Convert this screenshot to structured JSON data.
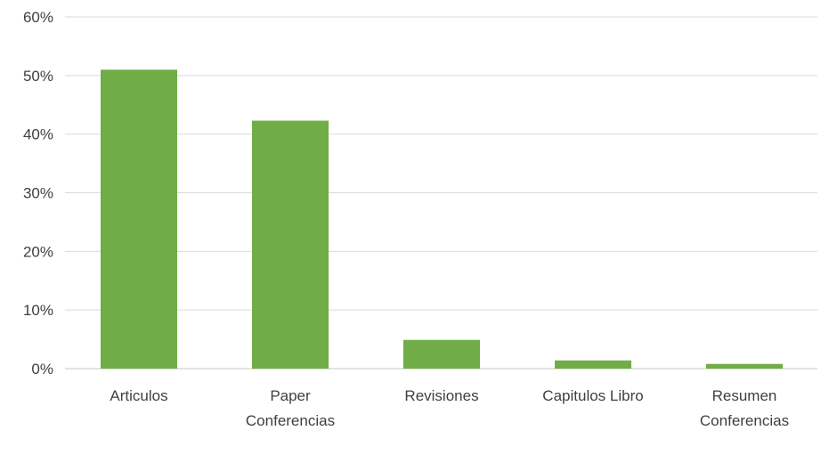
{
  "chart_data": {
    "type": "bar",
    "title": "",
    "xlabel": "",
    "ylabel": "",
    "categories": [
      [
        "Articulos"
      ],
      [
        "Paper",
        "Conferencias"
      ],
      [
        "Revisiones"
      ],
      [
        "Capitulos Libro"
      ],
      [
        "Resumen",
        "Conferencias"
      ]
    ],
    "values": [
      51,
      42.3,
      4.9,
      1.4,
      0.8
    ],
    "ylim": [
      0,
      60
    ],
    "yticks": [
      0,
      10,
      20,
      30,
      40,
      50,
      60
    ],
    "ytick_labels": [
      "0%",
      "10%",
      "20%",
      "30%",
      "40%",
      "50%",
      "60%"
    ],
    "grid": true,
    "legend": "none",
    "colors": {
      "bar": "#70ad47",
      "grid": "#d9d9d9",
      "text": "#404040"
    }
  }
}
